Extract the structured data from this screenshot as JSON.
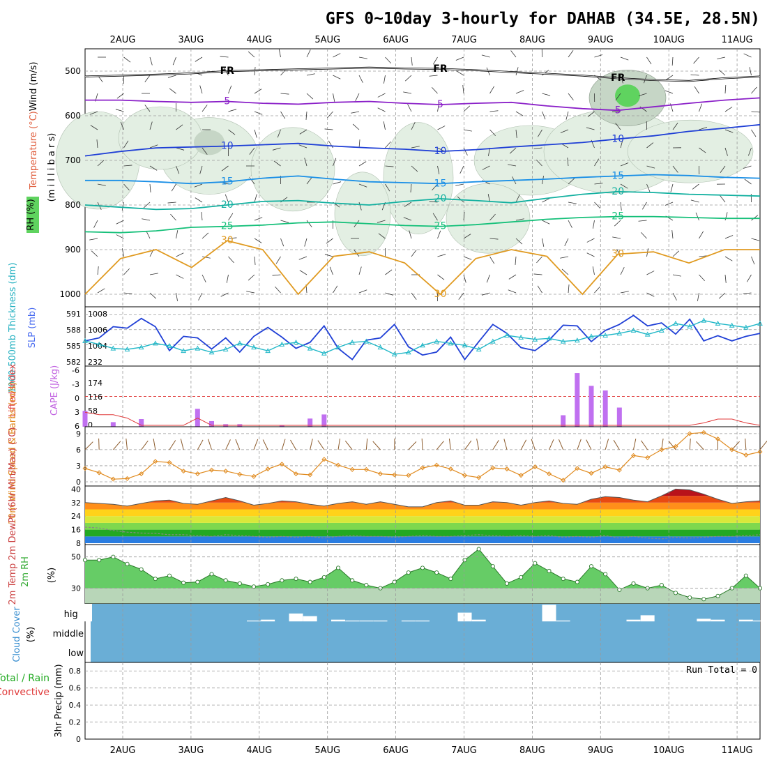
{
  "title": "GFS 0~10day 3-hourly for DAHAB (34.5E, 28.5N)",
  "date_labels": [
    "2AUG",
    "3AUG",
    "4AUG",
    "5AUG",
    "6AUG",
    "7AUG",
    "8AUG",
    "9AUG",
    "10AUG",
    "11AUG"
  ],
  "colors": {
    "axis": "#000000",
    "grid": "#9a9a9a",
    "rh_fill": "#e3efe3",
    "rh_fill2": "#c6d6c6",
    "rh_fill3": "#5fd35f",
    "slp": "#1f3fd6",
    "thickness": "#22b8c8",
    "cape": "#c070f0",
    "li": "#e03a3a",
    "wind10": "#e08a1e",
    "barb": "#8b5a2b",
    "dewpt": "#777777",
    "rh2m_dark": "#66cc66",
    "rh2m_light": "#b8d6b8",
    "cloud": "#6aaed6",
    "precip_total": "#22aa22",
    "precip_conv": "#e03a3a",
    "text_slp": "#4a6cf0",
    "text_thick": "#22b0c0",
    "text_cape": "#c060e0",
    "text_li": "#e04040",
    "text_wind": "#e08a1e",
    "text_t2m": "#cc4444",
    "text_rh2m": "#33aa33",
    "text_cloud": "#3a8fd0"
  },
  "chart_data": [
    {
      "id": "upper_air",
      "type": "heatmap",
      "title": "Wind (m/s), Temperature (°C), RH (%)",
      "ylabel": "(millibars)",
      "axis_labels": {
        "wind": "Wind (m/s)",
        "temperature": "Temperature (°C)",
        "rh": "RH (%)",
        "pressure": "(m i l l i b a r s)"
      },
      "y_ticks": [
        500,
        600,
        700,
        800,
        900,
        1000
      ],
      "ylim": [
        1000,
        450
      ],
      "temperature_contours": [
        {
          "label": "FR",
          "levels_mb": [
            512,
            510,
            508,
            505,
            500,
            498,
            496,
            494,
            492,
            494,
            495,
            498,
            502,
            506,
            510,
            516,
            520,
            522,
            516,
            512
          ],
          "color": "#000000"
        },
        {
          "label": "5",
          "levels_mb": [
            565,
            565,
            568,
            570,
            568,
            572,
            574,
            570,
            568,
            572,
            575,
            572,
            570,
            578,
            584,
            588,
            580,
            572,
            565,
            560
          ],
          "color": "#8a1fc8"
        },
        {
          "label": "10",
          "levels_mb": [
            690,
            680,
            672,
            670,
            668,
            665,
            662,
            668,
            672,
            675,
            680,
            676,
            670,
            665,
            660,
            652,
            645,
            635,
            628,
            620
          ],
          "color": "#1f3fd6"
        },
        {
          "label": "15",
          "levels_mb": [
            745,
            745,
            748,
            752,
            748,
            740,
            735,
            742,
            748,
            750,
            752,
            748,
            745,
            742,
            738,
            735,
            732,
            734,
            738,
            740
          ],
          "color": "#1a8fe6"
        },
        {
          "label": "20",
          "levels_mb": [
            800,
            805,
            810,
            808,
            800,
            792,
            790,
            796,
            800,
            792,
            786,
            790,
            795,
            785,
            776,
            770,
            772,
            776,
            778,
            780
          ],
          "color": "#12b0a0"
        },
        {
          "label": "25",
          "levels_mb": [
            860,
            862,
            858,
            850,
            848,
            845,
            840,
            838,
            842,
            846,
            848,
            844,
            838,
            832,
            828,
            826,
            826,
            828,
            830,
            830
          ],
          "color": "#16c07a"
        },
        {
          "label": "30",
          "levels_mb": [
            1000,
            920,
            900,
            940,
            880,
            900,
            1000,
            915,
            905,
            930,
            1000,
            920,
            900,
            915,
            1000,
            910,
            905,
            930,
            900,
            900
          ],
          "color": "#e09a20"
        }
      ],
      "contour_labels": [
        "FR",
        "FR",
        "FR",
        "5",
        "5",
        "10",
        "10",
        "15",
        "15",
        "20",
        "20",
        "25",
        "25",
        "30",
        "30",
        "30",
        "30",
        "30",
        "30",
        "30"
      ]
    },
    {
      "id": "slp_thickness",
      "type": "line",
      "axis_labels": {
        "thickness": "1000-500mb Thickness (dm)",
        "slp": "SLP (mb)"
      },
      "left_ticks": [
        "591",
        "588",
        "585",
        "582"
      ],
      "right_ticks": [
        "1008",
        "1006",
        "1004",
        "232"
      ],
      "series": [
        {
          "name": "SLP",
          "axis": "right",
          "values": [
            1004.5,
            1004.9,
            1006.4,
            1006.2,
            1007.5,
            1006.4,
            1003.2,
            1005.1,
            1004.9,
            1003.4,
            1004.9,
            1003.0,
            1005.1,
            1006.3,
            1005.0,
            1003.5,
            1004.3,
            1006.5,
            1003.5,
            1002.0,
            1004.6,
            1004.9,
            1006.7,
            1003.7,
            1002.6,
            1003.0,
            1005.0,
            1002.0,
            1004.4,
            1006.7,
            1005.5,
            1003.6,
            1003.2,
            1004.6,
            1006.6,
            1006.5,
            1004.4,
            1005.9,
            1006.7,
            1007.9,
            1006.5,
            1006.9,
            1005.4,
            1007.4,
            1004.5,
            1005.2,
            1004.5,
            1005.1,
            1005.5
          ]
        },
        {
          "name": "Thickness",
          "axis": "left",
          "values": [
            585.5,
            584.8,
            584.0,
            583.8,
            584.2,
            585.0,
            584.5,
            583.5,
            584.0,
            583.2,
            583.8,
            585.0,
            584.2,
            583.5,
            584.8,
            585.2,
            584.0,
            583.0,
            584.2,
            585.2,
            585.4,
            584.2,
            582.8,
            583.2,
            584.6,
            585.4,
            585.0,
            584.6,
            583.8,
            585.4,
            586.6,
            586.2,
            585.8,
            586.0,
            585.4,
            585.6,
            586.4,
            586.6,
            587.0,
            587.6,
            586.8,
            587.6,
            589.0,
            588.4,
            589.6,
            589.0,
            588.6,
            588.2,
            589.0
          ]
        }
      ]
    },
    {
      "id": "cape_li",
      "type": "bar",
      "axis_labels": {
        "li": "Lifted Index",
        "cape": "CAPE (J/kg)"
      },
      "left_ticks": [
        "-6",
        "-3",
        "0",
        "3",
        "6"
      ],
      "right_ticks": [
        "174",
        "116",
        "58",
        "0"
      ],
      "cape_values": [
        62,
        0,
        18,
        0,
        30,
        0,
        0,
        0,
        70,
        22,
        10,
        10,
        0,
        0,
        5,
        0,
        32,
        48,
        0,
        0,
        0,
        0,
        0,
        0,
        0,
        0,
        0,
        0,
        0,
        0,
        0,
        0,
        0,
        0,
        45,
        210,
        160,
        142,
        75,
        0,
        0,
        0,
        0,
        0,
        0,
        0,
        0,
        0,
        0
      ],
      "li_values": [
        3.3,
        3.8,
        3.8,
        4.5,
        6,
        6,
        6,
        6,
        4.5,
        6,
        6,
        6,
        6,
        6,
        6,
        6,
        6,
        6,
        6,
        6,
        6,
        6,
        6,
        6,
        6,
        6,
        6,
        6,
        6,
        6,
        6,
        6,
        6,
        6,
        6,
        6,
        6,
        6,
        6,
        6,
        6,
        6,
        6,
        6,
        5.5,
        4.7,
        4.7,
        5.5,
        6
      ]
    },
    {
      "id": "wind10m",
      "type": "line",
      "axis_labels": {
        "title": "10m Wind Speed & Barbs (m/s)"
      },
      "ticks": [
        "9",
        "6",
        "3",
        "0"
      ],
      "ylim": [
        0,
        9.5
      ],
      "values": [
        2.5,
        1.7,
        0.5,
        0.6,
        1.5,
        3.8,
        3.6,
        2.0,
        1.5,
        2.2,
        2.0,
        1.4,
        1.0,
        2.4,
        3.3,
        1.5,
        1.3,
        4.2,
        3.1,
        2.3,
        2.3,
        1.5,
        1.3,
        1.2,
        2.6,
        3.1,
        2.4,
        1.2,
        0.8,
        2.6,
        2.4,
        1.2,
        2.8,
        1.5,
        0.3,
        2.5,
        1.6,
        2.8,
        2.2,
        4.9,
        4.5,
        6.0,
        6.6,
        9.0,
        9.2,
        8.0,
        6.0,
        5.0,
        5.6
      ]
    },
    {
      "id": "temp2m",
      "type": "area",
      "axis_labels": {
        "title": "2m Temp 2m DewPt (6hr Min/Max) (°C)"
      },
      "ticks": [
        "40",
        "32",
        "24",
        "16",
        "8"
      ],
      "ylim": [
        8,
        40
      ],
      "temperature": [
        32.0,
        31.5,
        31.0,
        30.0,
        31.5,
        33.0,
        33.5,
        31.5,
        31.0,
        33.0,
        35.0,
        33.0,
        30.5,
        31.5,
        33.0,
        32.5,
        31.0,
        30.0,
        31.5,
        32.5,
        31.0,
        32.5,
        31.0,
        29.5,
        29.5,
        32.0,
        33.0,
        30.5,
        30.5,
        32.5,
        32.0,
        30.5,
        32.0,
        33.0,
        31.5,
        31.0,
        34.0,
        35.5,
        35.0,
        33.5,
        32.5,
        36.0,
        40.0,
        39.5,
        37.0,
        34.0,
        31.5,
        32.5,
        33.0
      ],
      "dewpoint": [
        17.5,
        17.0,
        15.5,
        14.5,
        14.0,
        13.8,
        13.0,
        13.0,
        12.5,
        12.0,
        13.0,
        12.5,
        12.0,
        11.5,
        12.0,
        11.5,
        12.0,
        11.0,
        12.0,
        12.5,
        12.0,
        12.0,
        11.5,
        12.0,
        12.5,
        12.0,
        12.0,
        12.5,
        13.0,
        12.5,
        12.0,
        12.5,
        12.0,
        12.5,
        11.5,
        12.0,
        11.5,
        12.5,
        11.0,
        12.0,
        11.0,
        10.5,
        11.5,
        11.0,
        11.5,
        12.0,
        12.0,
        12.5,
        13.0
      ]
    },
    {
      "id": "rh2m",
      "type": "area",
      "axis_labels": {
        "title": "2m RH",
        "unit": "(%)"
      },
      "ticks": [
        "50",
        "30"
      ],
      "ylim": [
        20,
        57
      ],
      "values": [
        48.0,
        48.0,
        50.0,
        45.5,
        42.0,
        36.0,
        38.0,
        33.5,
        34.0,
        39.0,
        35.0,
        33.0,
        31.0,
        32.5,
        35.0,
        36.0,
        34.0,
        37.0,
        43.0,
        35.0,
        32.0,
        30.0,
        34.0,
        40.0,
        43.0,
        40.0,
        36.0,
        48.0,
        55.0,
        44.0,
        33.0,
        37.0,
        46.0,
        41.0,
        36.0,
        34.0,
        44.0,
        39.0,
        29.0,
        33.0,
        30.0,
        32.0,
        27.0,
        24.0,
        23.0,
        25.0,
        30.0,
        38.0,
        30.0
      ]
    },
    {
      "id": "cloud_cover",
      "type": "bar",
      "axis_labels": {
        "title": "Cloud Cover",
        "unit": "(%)"
      },
      "levels": [
        "high",
        "middle",
        "low"
      ],
      "high_clear_fraction": [
        100,
        0,
        0,
        0,
        0,
        0,
        0,
        0,
        0,
        0,
        0,
        0,
        5,
        10,
        0,
        45,
        30,
        0,
        10,
        5,
        5,
        5,
        0,
        5,
        5,
        0,
        0,
        50,
        10,
        0,
        0,
        0,
        0,
        95,
        5,
        0,
        0,
        0,
        0,
        10,
        35,
        0,
        0,
        0,
        15,
        10,
        0,
        10,
        5
      ]
    },
    {
      "id": "precip",
      "type": "bar",
      "axis_labels": {
        "total_rain": "Total / Rain",
        "convective": "Convective",
        "unit": "3hr Precip (mm)"
      },
      "ticks": [
        "0.8",
        "0.6",
        "0.4",
        "0.2",
        "0"
      ],
      "run_total": "Run Total = 0",
      "values": [
        0,
        0,
        0,
        0,
        0,
        0,
        0,
        0,
        0,
        0
      ]
    }
  ]
}
